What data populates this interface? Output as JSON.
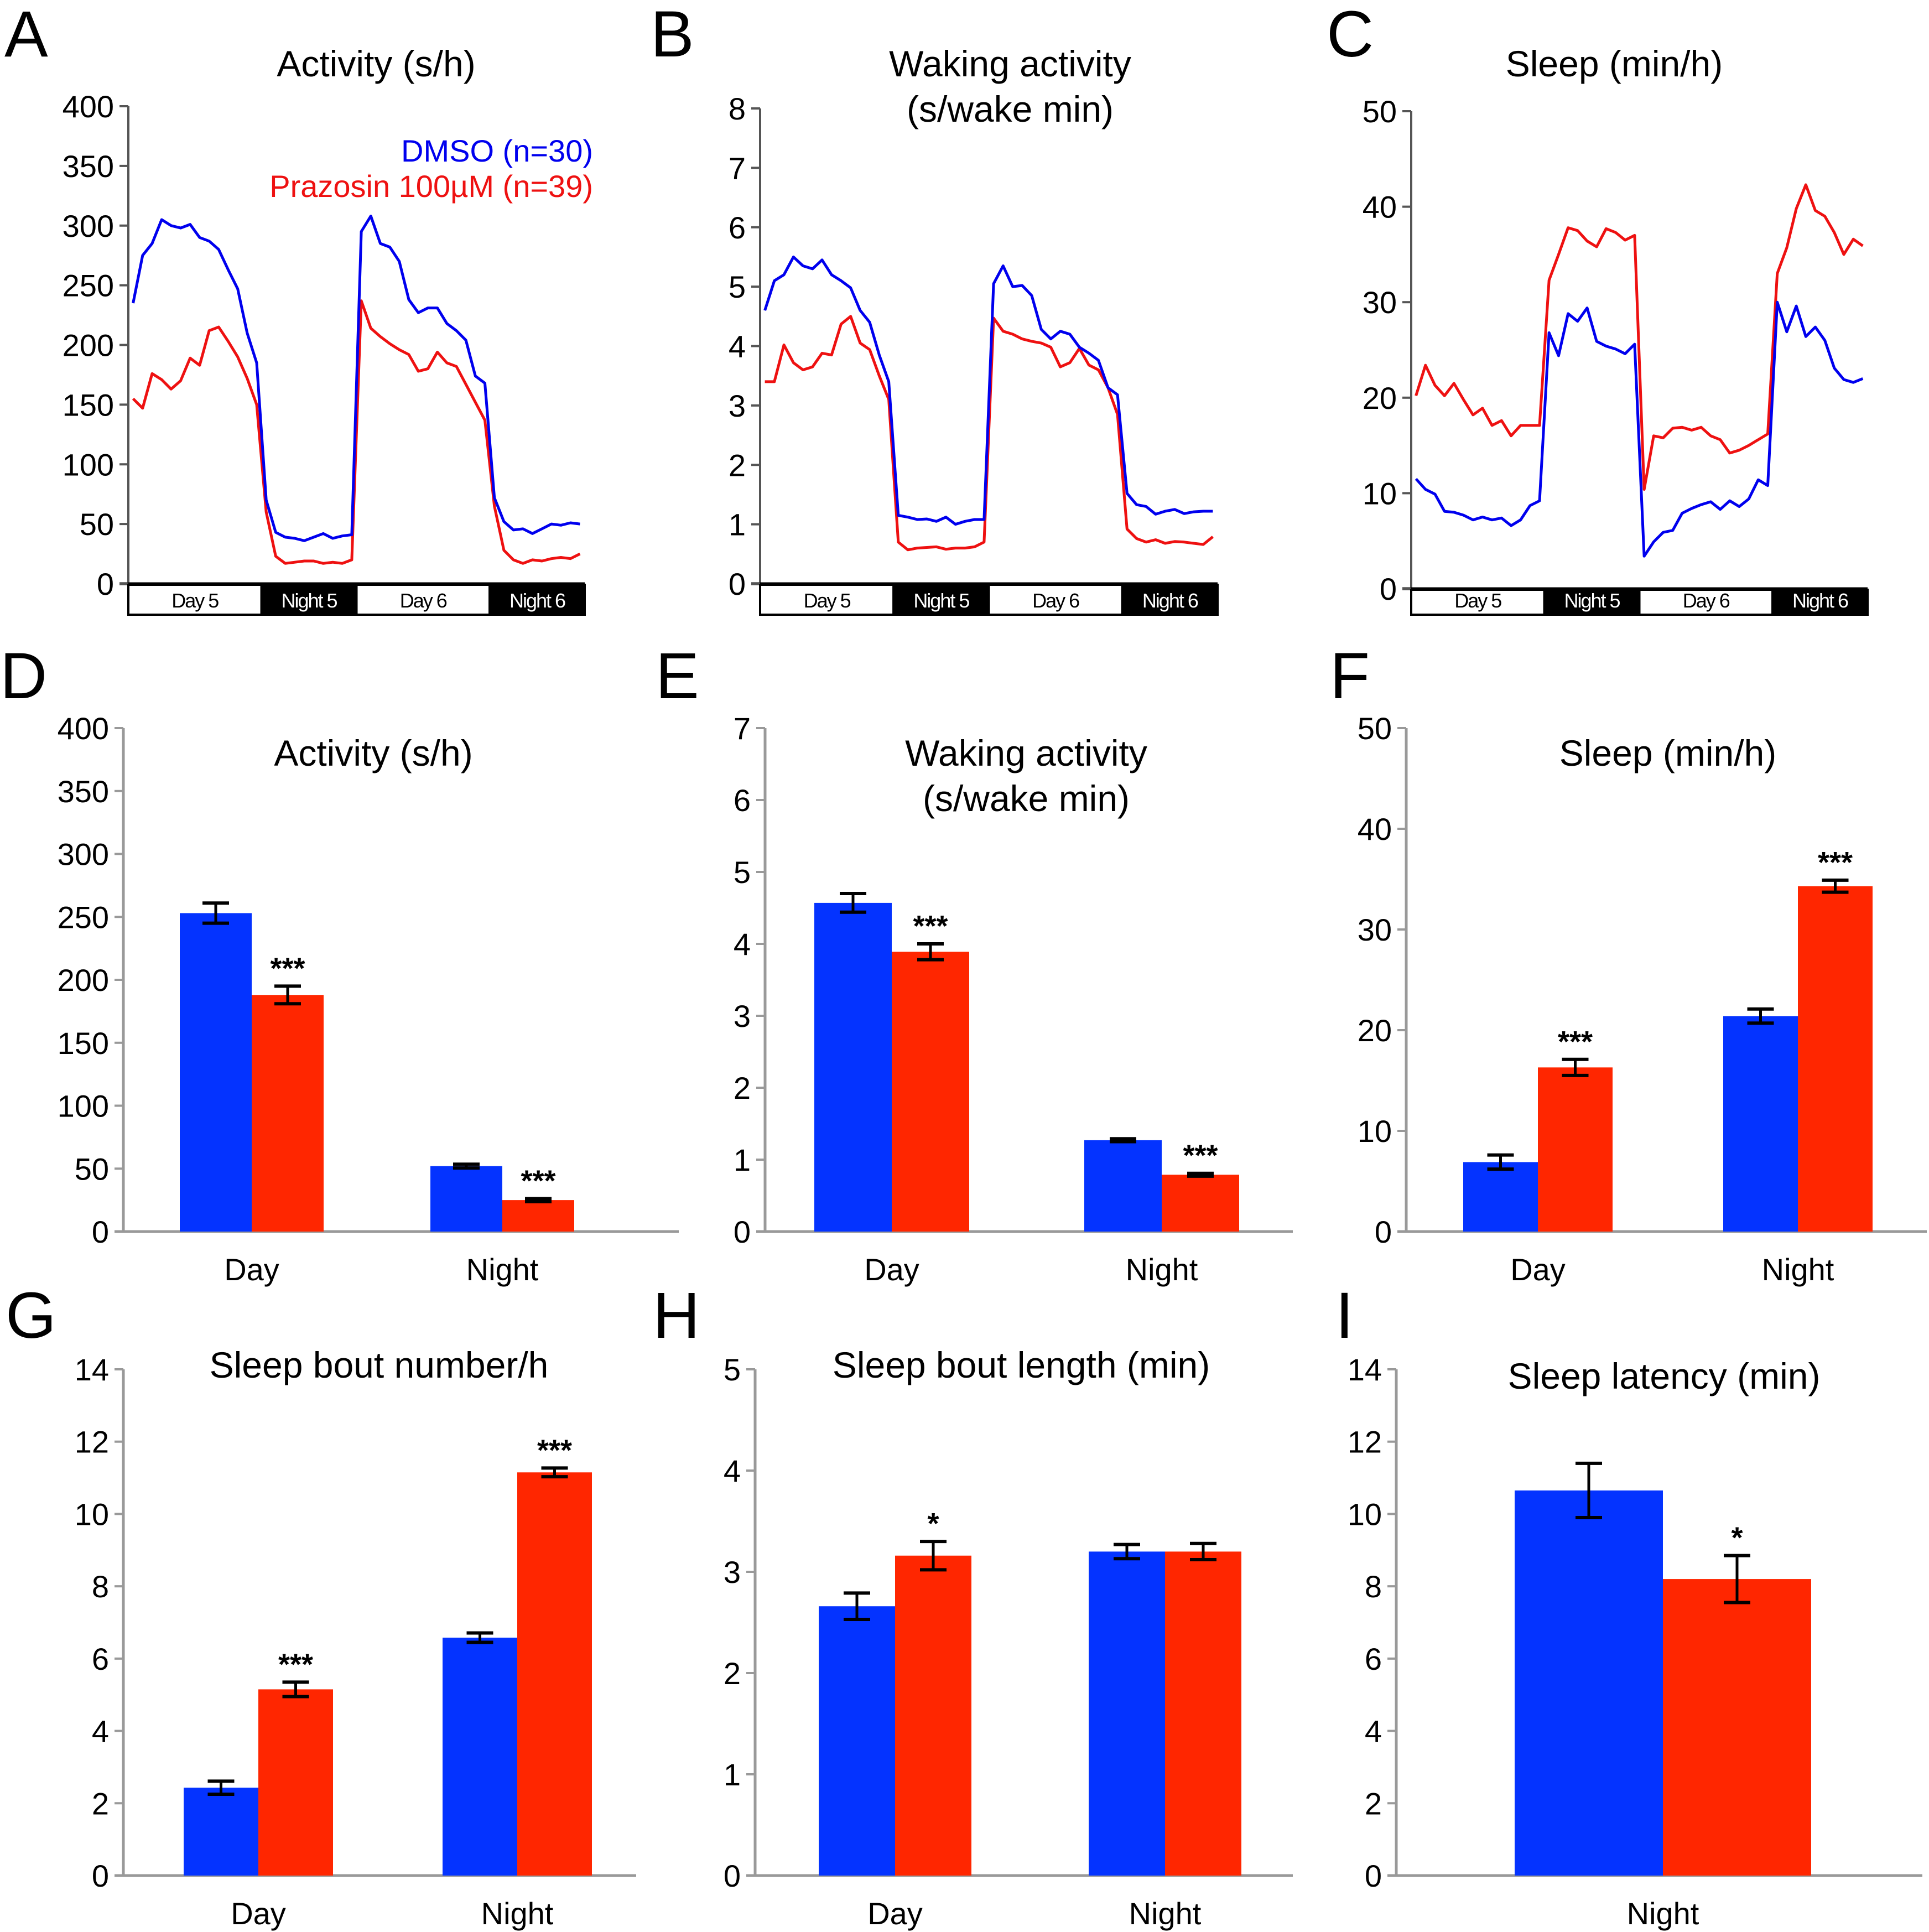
{
  "figure": {
    "colors": {
      "dmso": "#0000ee",
      "prazosin": "#ee1111",
      "dmso_bar": "#0433ff",
      "prazosin_bar": "#ff2600",
      "axis_line": "#555555",
      "bar_axis": "#999999",
      "black": "#000000"
    },
    "legend": {
      "entries": [
        {
          "label": "DMSO (n=30)",
          "series": "dmso"
        },
        {
          "label": "Prazosin 100µM (n=39)",
          "series": "prazosin"
        }
      ]
    }
  },
  "chart_data": [
    {
      "panel": "A",
      "type": "line",
      "title": [
        "Activity (s/h)"
      ],
      "ylim": [
        0,
        400
      ],
      "yticks": [
        0,
        50,
        100,
        150,
        200,
        250,
        300,
        350,
        400
      ],
      "periods": [
        {
          "label": "Day 5",
          "dark": false,
          "points": 14
        },
        {
          "label": "Night 5",
          "dark": true,
          "points": 10
        },
        {
          "label": "Day 6",
          "dark": false,
          "points": 14
        },
        {
          "label": "Night 6",
          "dark": true,
          "points": 10
        }
      ],
      "x_unit": "hour",
      "legend": "top-right",
      "series": [
        {
          "name": "DMSO (n=30)",
          "key": "dmso",
          "values": [
            235,
            275,
            285,
            305,
            300,
            298,
            301,
            290,
            287,
            280,
            263,
            247,
            210,
            185,
            70,
            43,
            39,
            38,
            36,
            39,
            42,
            38,
            40,
            41,
            295,
            308,
            285,
            282,
            270,
            238,
            227,
            231,
            231,
            218,
            212,
            204,
            174,
            168,
            72,
            52,
            45,
            46,
            42,
            46,
            50,
            49,
            51,
            50
          ]
        },
        {
          "name": "Prazosin 100µM (n=39)",
          "key": "prazosin",
          "values": [
            155,
            147,
            176,
            171,
            163,
            170,
            189,
            183,
            212,
            215,
            203,
            190,
            172,
            150,
            60,
            23,
            17,
            18,
            19,
            19,
            17,
            18,
            17,
            20,
            237,
            214,
            207,
            201,
            196,
            192,
            178,
            180,
            194,
            185,
            182,
            167,
            152,
            137,
            65,
            28,
            20,
            17,
            20,
            19,
            21,
            22,
            21,
            25
          ]
        }
      ]
    },
    {
      "panel": "B",
      "type": "line",
      "title": [
        "Waking activity",
        "(s/wake min)"
      ],
      "ylim": [
        0,
        8
      ],
      "yticks": [
        0,
        1,
        2,
        3,
        4,
        5,
        6,
        7,
        8
      ],
      "periods": [
        {
          "label": "Day 5",
          "dark": false,
          "points": 14
        },
        {
          "label": "Night 5",
          "dark": true,
          "points": 10
        },
        {
          "label": "Day 6",
          "dark": false,
          "points": 14
        },
        {
          "label": "Night 6",
          "dark": true,
          "points": 10
        }
      ],
      "x_unit": "hour",
      "series": [
        {
          "name": "DMSO (n=30)",
          "key": "dmso",
          "values": [
            4.6,
            5.1,
            5.2,
            5.5,
            5.35,
            5.3,
            5.45,
            5.2,
            5.1,
            4.98,
            4.6,
            4.4,
            3.85,
            3.4,
            1.15,
            1.12,
            1.08,
            1.09,
            1.05,
            1.12,
            1.0,
            1.05,
            1.08,
            1.08,
            5.05,
            5.35,
            5.0,
            5.02,
            4.85,
            4.28,
            4.12,
            4.25,
            4.2,
            3.98,
            3.88,
            3.76,
            3.3,
            3.18,
            1.52,
            1.33,
            1.3,
            1.17,
            1.22,
            1.25,
            1.18,
            1.21,
            1.22,
            1.22
          ]
        },
        {
          "name": "Prazosin 100µM (n=39)",
          "key": "prazosin",
          "values": [
            3.4,
            3.4,
            4.02,
            3.72,
            3.6,
            3.65,
            3.88,
            3.85,
            4.37,
            4.5,
            4.05,
            3.94,
            3.5,
            3.1,
            0.7,
            0.57,
            0.6,
            0.61,
            0.62,
            0.58,
            0.6,
            0.6,
            0.62,
            0.7,
            4.47,
            4.25,
            4.2,
            4.12,
            4.08,
            4.05,
            3.98,
            3.65,
            3.72,
            3.96,
            3.68,
            3.6,
            3.3,
            2.85,
            0.92,
            0.76,
            0.7,
            0.74,
            0.68,
            0.71,
            0.7,
            0.68,
            0.66,
            0.79
          ]
        }
      ]
    },
    {
      "panel": "C",
      "type": "line",
      "title": [
        "Sleep (min/h)"
      ],
      "ylim": [
        0,
        50
      ],
      "yticks": [
        0,
        10,
        20,
        30,
        40,
        50
      ],
      "periods": [
        {
          "label": "Day 5",
          "dark": false,
          "points": 14
        },
        {
          "label": "Night 5",
          "dark": true,
          "points": 10
        },
        {
          "label": "Day 6",
          "dark": false,
          "points": 14
        },
        {
          "label": "Night 6",
          "dark": true,
          "points": 10
        }
      ],
      "x_unit": "hour",
      "series": [
        {
          "name": "DMSO (n=30)",
          "key": "dmso",
          "values": [
            11.5,
            10.4,
            9.9,
            8.1,
            8.0,
            7.7,
            7.2,
            7.5,
            7.2,
            7.4,
            6.6,
            7.2,
            8.7,
            9.2,
            26.8,
            24.4,
            28.8,
            28.0,
            29.4,
            25.9,
            25.4,
            25.1,
            24.6,
            25.6,
            3.4,
            4.9,
            5.9,
            6.1,
            7.9,
            8.4,
            8.8,
            9.1,
            8.3,
            9.2,
            8.6,
            9.4,
            11.4,
            10.8,
            30.0,
            26.9,
            29.6,
            26.4,
            27.4,
            26.0,
            23.1,
            21.9,
            21.6,
            22.0
          ]
        },
        {
          "name": "Prazosin 100µM (n=39)",
          "key": "prazosin",
          "values": [
            20.2,
            23.4,
            21.3,
            20.2,
            21.5,
            19.8,
            18.2,
            18.9,
            17.1,
            17.6,
            16.0,
            17.1,
            17.1,
            17.1,
            32.3,
            35.0,
            37.8,
            37.5,
            36.4,
            35.8,
            37.7,
            37.3,
            36.5,
            37.0,
            10.4,
            16.0,
            15.8,
            16.8,
            16.9,
            16.6,
            16.9,
            16.0,
            15.6,
            14.2,
            14.5,
            15.0,
            15.6,
            16.2,
            33.0,
            35.7,
            39.8,
            42.3,
            39.6,
            39.0,
            37.3,
            35.0,
            36.6,
            35.9
          ]
        }
      ]
    },
    {
      "panel": "D",
      "type": "bar",
      "title": [
        "Activity (s/h)"
      ],
      "ylim": [
        0,
        400
      ],
      "yticks": [
        0,
        50,
        100,
        150,
        200,
        250,
        300,
        350,
        400
      ],
      "categories": [
        "Day",
        "Night"
      ],
      "series": [
        {
          "name": "DMSO (n=30)",
          "key": "dmso",
          "values": [
            253,
            52
          ],
          "errors": [
            8,
            1.5
          ]
        },
        {
          "name": "Prazosin 100µM (n=39)",
          "key": "prazosin",
          "values": [
            188,
            25
          ],
          "errors": [
            7,
            1.2
          ]
        }
      ],
      "annotations": [
        {
          "category": 0,
          "series": 1,
          "text": "***"
        },
        {
          "category": 1,
          "series": 1,
          "text": "***"
        }
      ]
    },
    {
      "panel": "E",
      "type": "bar",
      "title": [
        "Waking activity",
        "(s/wake min)"
      ],
      "ylim": [
        0,
        7
      ],
      "yticks": [
        0,
        1,
        2,
        3,
        4,
        5,
        6,
        7
      ],
      "categories": [
        "Day",
        "Night"
      ],
      "series": [
        {
          "name": "DMSO (n=30)",
          "key": "dmso",
          "values": [
            4.57,
            1.27
          ],
          "errors": [
            0.13,
            0.02
          ]
        },
        {
          "name": "Prazosin 100µM (n=39)",
          "key": "prazosin",
          "values": [
            3.89,
            0.79
          ],
          "errors": [
            0.11,
            0.02
          ]
        }
      ],
      "annotations": [
        {
          "category": 0,
          "series": 1,
          "text": "***"
        },
        {
          "category": 1,
          "series": 1,
          "text": "***"
        }
      ]
    },
    {
      "panel": "F",
      "type": "bar",
      "title": [
        "Sleep (min/h)"
      ],
      "ylim": [
        0,
        50
      ],
      "yticks": [
        0,
        10,
        20,
        30,
        40,
        50
      ],
      "categories": [
        "Day",
        "Night"
      ],
      "series": [
        {
          "name": "DMSO (n=30)",
          "key": "dmso",
          "values": [
            6.9,
            21.4
          ],
          "errors": [
            0.7,
            0.7
          ]
        },
        {
          "name": "Prazosin 100µM (n=39)",
          "key": "prazosin",
          "values": [
            16.3,
            34.3
          ],
          "errors": [
            0.8,
            0.6
          ]
        }
      ],
      "annotations": [
        {
          "category": 0,
          "series": 1,
          "text": "***"
        },
        {
          "category": 1,
          "series": 1,
          "text": "***"
        }
      ]
    },
    {
      "panel": "G",
      "type": "bar",
      "title": [
        "Sleep bout number/h"
      ],
      "ylim": [
        0,
        14
      ],
      "yticks": [
        0,
        2,
        4,
        6,
        8,
        10,
        12,
        14
      ],
      "categories": [
        "Day",
        "Night"
      ],
      "series": [
        {
          "name": "DMSO (n=30)",
          "key": "dmso",
          "values": [
            2.43,
            6.58
          ],
          "errors": [
            0.18,
            0.13
          ]
        },
        {
          "name": "Prazosin 100µM (n=39)",
          "key": "prazosin",
          "values": [
            5.15,
            11.15
          ],
          "errors": [
            0.2,
            0.12
          ]
        }
      ],
      "annotations": [
        {
          "category": 0,
          "series": 1,
          "text": "***"
        },
        {
          "category": 1,
          "series": 1,
          "text": "***"
        }
      ]
    },
    {
      "panel": "H",
      "type": "bar",
      "title": [
        "Sleep bout length (min)"
      ],
      "ylim": [
        0,
        5
      ],
      "yticks": [
        0,
        1,
        2,
        3,
        4,
        5
      ],
      "categories": [
        "Day",
        "Night"
      ],
      "series": [
        {
          "name": "DMSO (n=30)",
          "key": "dmso",
          "values": [
            2.66,
            3.2
          ],
          "errors": [
            0.13,
            0.07
          ]
        },
        {
          "name": "Prazosin 100µM (n=39)",
          "key": "prazosin",
          "values": [
            3.16,
            3.2
          ],
          "errors": [
            0.14,
            0.08
          ]
        }
      ],
      "annotations": [
        {
          "category": 0,
          "series": 1,
          "text": "*"
        }
      ]
    },
    {
      "panel": "I",
      "type": "bar",
      "title": [
        "Sleep latency (min)"
      ],
      "ylim": [
        0,
        14
      ],
      "yticks": [
        0,
        2,
        4,
        6,
        8,
        10,
        12,
        14
      ],
      "categories": [
        "Night"
      ],
      "series": [
        {
          "name": "DMSO (n=30)",
          "key": "dmso",
          "values": [
            10.65
          ],
          "errors": [
            0.75
          ]
        },
        {
          "name": "Prazosin 100µM (n=39)",
          "key": "prazosin",
          "values": [
            8.2
          ],
          "errors": [
            0.65
          ]
        }
      ],
      "annotations": [
        {
          "category": 0,
          "series": 1,
          "text": "*"
        }
      ]
    }
  ]
}
